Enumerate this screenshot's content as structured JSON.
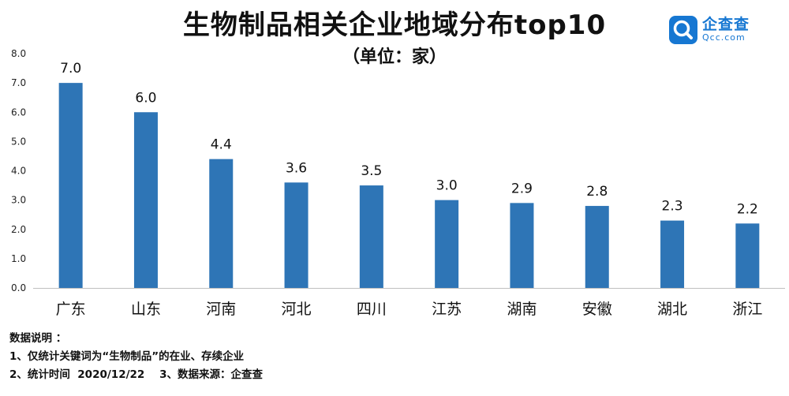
{
  "title": "生物制品相关企业地域分布top10",
  "subtitle": "（单位：家）",
  "logo": {
    "name_cn": "企查查",
    "name_en": "Qcc.com",
    "icon": "qcc-search-logo-icon",
    "color": "#1677d2"
  },
  "chart_data": {
    "type": "bar",
    "categories": [
      "广东",
      "山东",
      "河南",
      "河北",
      "四川",
      "江苏",
      "湖南",
      "安徽",
      "湖北",
      "浙江"
    ],
    "values": [
      7.0,
      6.0,
      4.4,
      3.6,
      3.5,
      3.0,
      2.9,
      2.8,
      2.3,
      2.2
    ],
    "value_labels": [
      "7.0",
      "6.0",
      "4.4",
      "3.6",
      "3.5",
      "3.0",
      "2.9",
      "2.8",
      "2.3",
      "2.2"
    ],
    "yticks": [
      "0.0",
      "1.0",
      "2.0",
      "3.0",
      "4.0",
      "5.0",
      "6.0",
      "7.0",
      "8.0"
    ],
    "ylim": [
      0,
      8
    ],
    "grid": false,
    "bar_color": "#2e75b6"
  },
  "notes": {
    "heading": "数据说明 ：",
    "line1": "1、仅统计关键词为“生物制品”的在业、存续企业",
    "line2": "2、统计时间  2020/12/22    3、数据来源：企查查"
  }
}
